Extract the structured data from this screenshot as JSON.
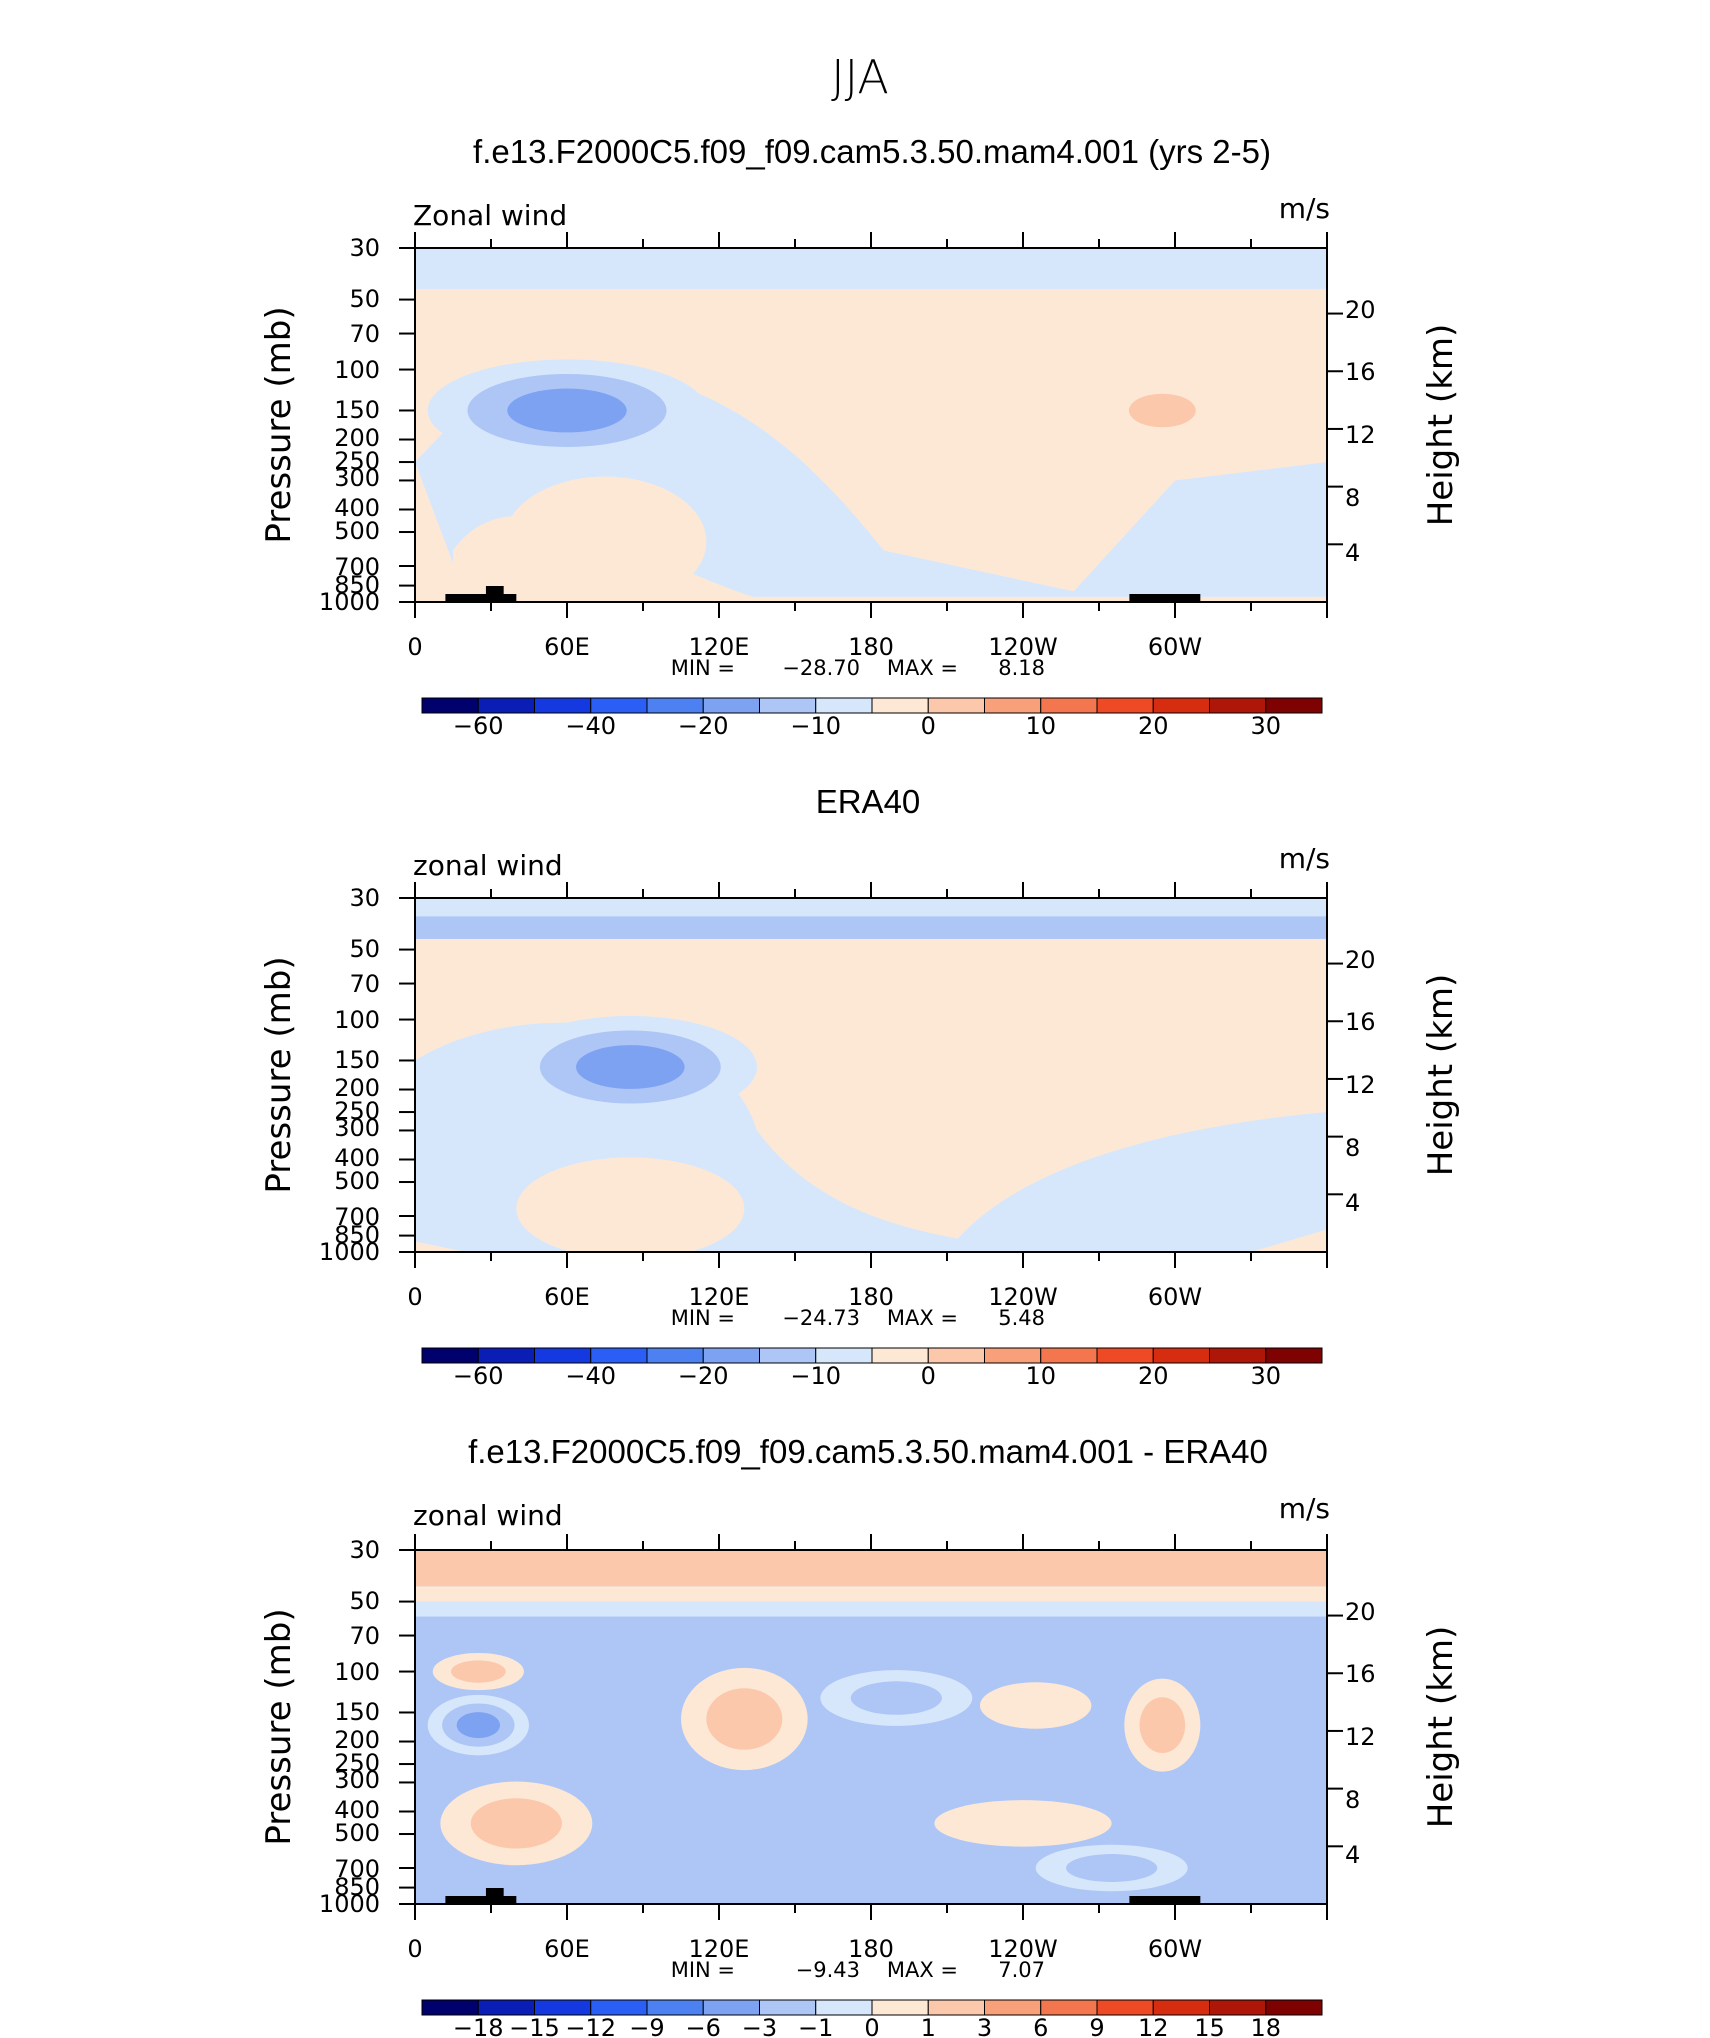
{
  "page_title": "JJA",
  "chart_data": [
    {
      "type": "heatmap",
      "title": "f.e13.F2000C5.f09_f09.cam5.3.50.mam4.001 (yrs 2-5)",
      "variable_label": "Zonal wind",
      "units_label": "m/s",
      "ylabel": "Pressure  (mb)",
      "ylabel_right": "Height  (km)",
      "x_ticks": [
        "0",
        "60E",
        "120E",
        "180",
        "120W",
        "60W"
      ],
      "y_ticks": [
        "30",
        "50",
        "70",
        "100",
        "150",
        "200",
        "250",
        "300",
        "400",
        "500",
        "700",
        "850",
        "1000"
      ],
      "y_right_ticks": [
        "20",
        "16",
        "12",
        "8",
        "4"
      ],
      "stats": {
        "min_label": "MIN  =",
        "min": "−28.70",
        "max_label": "MAX  =",
        "max": "8.18"
      },
      "colorbar_labels": [
        "−60",
        "−40",
        "−20",
        "−10",
        "0",
        "10",
        "20",
        "30"
      ],
      "fields": [
        {
          "level": -4,
          "lon": 75,
          "p": 150,
          "sx": 28,
          "sy": 0.13
        },
        {
          "level": -3,
          "lon": 60,
          "p": 150,
          "sx": 55,
          "sy": 0.22
        },
        {
          "level": 1,
          "lon": 270,
          "p": 130,
          "sx": 60,
          "sy": 0.18
        },
        {
          "level": 2,
          "lon": 295,
          "p": 150,
          "sx": 22,
          "sy": 0.12
        },
        {
          "level": 1,
          "lon": 75,
          "p": 550,
          "sx": 40,
          "sy": 0.28
        }
      ]
    },
    {
      "type": "heatmap",
      "title": "ERA40",
      "variable_label": "zonal wind",
      "units_label": "m/s",
      "ylabel": "Pressure  (mb)",
      "ylabel_right": "Height  (km)",
      "x_ticks": [
        "0",
        "60E",
        "120E",
        "180",
        "120W",
        "60W"
      ],
      "y_ticks": [
        "30",
        "50",
        "70",
        "100",
        "150",
        "200",
        "250",
        "300",
        "400",
        "500",
        "700",
        "850",
        "1000"
      ],
      "y_right_ticks": [
        "20",
        "16",
        "12",
        "8",
        "4"
      ],
      "stats": {
        "min_label": "MIN  =",
        "min": "−24.73",
        "max_label": "MAX  =",
        "max": "5.48"
      },
      "colorbar_labels": [
        "−60",
        "−40",
        "−20",
        "−10",
        "0",
        "10",
        "20",
        "30"
      ],
      "fields": [
        {
          "level": -4,
          "lon": 85,
          "p": 150,
          "sx": 22,
          "sy": 0.12
        },
        {
          "level": -3,
          "lon": 85,
          "p": 160,
          "sx": 50,
          "sy": 0.22
        },
        {
          "level": 1,
          "lon": 270,
          "p": 120,
          "sx": 65,
          "sy": 0.2
        },
        {
          "level": 1,
          "lon": 85,
          "p": 650,
          "sx": 45,
          "sy": 0.22
        }
      ]
    },
    {
      "type": "heatmap",
      "title": "f.e13.F2000C5.f09_f09.cam5.3.50.mam4.001 - ERA40",
      "variable_label": "zonal wind",
      "units_label": "m/s",
      "ylabel": "Pressure  (mb)",
      "ylabel_right": "Height  (km)",
      "x_ticks": [
        "0",
        "60E",
        "120E",
        "180",
        "120W",
        "60W"
      ],
      "y_ticks": [
        "30",
        "50",
        "70",
        "100",
        "150",
        "200",
        "250",
        "300",
        "400",
        "500",
        "700",
        "850",
        "1000"
      ],
      "y_right_ticks": [
        "20",
        "16",
        "12",
        "8",
        "4"
      ],
      "stats": {
        "min_label": "MIN  =",
        "min": "−9.43",
        "max_label": "MAX  =",
        "max": "7.07"
      },
      "colorbar_labels": [
        "−18",
        "−15",
        "−12",
        "−9",
        "−6",
        "−3",
        "−1",
        "0",
        "1",
        "3",
        "6",
        "9",
        "12",
        "15",
        "18"
      ],
      "fields": [
        {
          "level": 2,
          "lon": 25,
          "p": 100,
          "sx": 18,
          "sy": 0.08
        },
        {
          "level": -3,
          "lon": 25,
          "p": 170,
          "sx": 20,
          "sy": 0.13
        },
        {
          "level": 2,
          "lon": 130,
          "p": 160,
          "sx": 25,
          "sy": 0.22
        },
        {
          "level": -2,
          "lon": 190,
          "p": 130,
          "sx": 30,
          "sy": 0.12
        },
        {
          "level": 1,
          "lon": 245,
          "p": 140,
          "sx": 22,
          "sy": 0.1
        },
        {
          "level": 2,
          "lon": 295,
          "p": 170,
          "sx": 15,
          "sy": 0.2
        },
        {
          "level": 2,
          "lon": 40,
          "p": 450,
          "sx": 30,
          "sy": 0.18
        },
        {
          "level": -2,
          "lon": 275,
          "p": 700,
          "sx": 30,
          "sy": 0.1
        },
        {
          "level": 1,
          "lon": 240,
          "p": 450,
          "sx": 35,
          "sy": 0.1
        }
      ]
    }
  ]
}
